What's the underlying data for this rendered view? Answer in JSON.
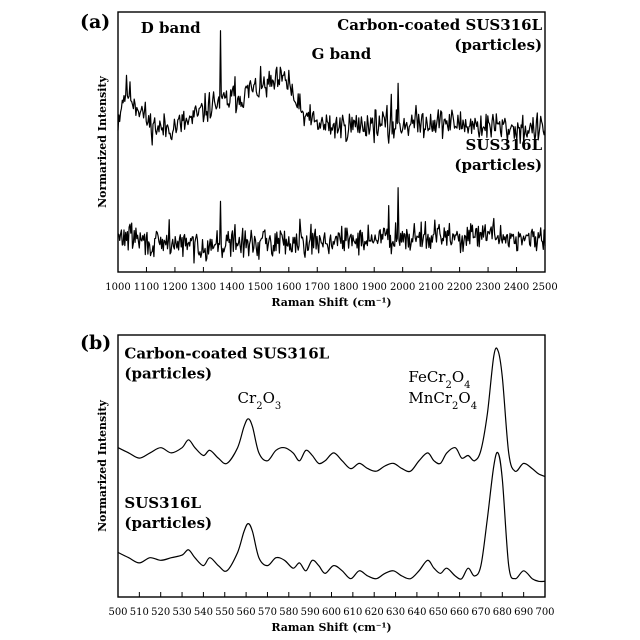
{
  "chart_data": [
    {
      "id": "a",
      "type": "line",
      "panel_label": "(a)",
      "xlabel": "Raman Shift (cm⁻¹)",
      "ylabel": "Normarized Intensity",
      "xlim": [
        1000,
        2500
      ],
      "ylim": [
        0,
        1
      ],
      "xticks": [
        1000,
        1100,
        1200,
        1300,
        1400,
        1500,
        1600,
        1700,
        1800,
        1900,
        2000,
        2100,
        2200,
        2300,
        2400,
        2500
      ],
      "grid": false,
      "annotations": [
        {
          "text": "D band",
          "x": 1080,
          "y": 0.92
        },
        {
          "text": "G band",
          "x": 1680,
          "y": 0.82
        },
        {
          "lines": [
            "Carbon-coated SUS316L",
            "(particles)"
          ],
          "x": 2490,
          "y": 0.93
        },
        {
          "lines": [
            "SUS316L",
            "(particles)"
          ],
          "x": 2490,
          "y": 0.47
        }
      ],
      "series": [
        {
          "seed": 11,
          "noise": 0.028,
          "x": [
            1000,
            1015,
            1030,
            1060,
            1090,
            1110,
            1150,
            1200,
            1250,
            1300,
            1340,
            1380,
            1420,
            1460,
            1500,
            1540,
            1580,
            1600,
            1620,
            1650,
            1700,
            1750,
            1800,
            1900,
            2000,
            2100,
            2200,
            2300,
            2400,
            2500
          ],
          "y": [
            0.58,
            0.66,
            0.7,
            0.65,
            0.61,
            0.57,
            0.55,
            0.56,
            0.58,
            0.62,
            0.65,
            0.66,
            0.67,
            0.69,
            0.71,
            0.72,
            0.74,
            0.72,
            0.66,
            0.6,
            0.57,
            0.56,
            0.56,
            0.57,
            0.57,
            0.58,
            0.57,
            0.56,
            0.55,
            0.55
          ],
          "spikes": [
            [
              1360,
              0.22
            ],
            [
              1410,
              0.1
            ],
            [
              1465,
              0.06
            ],
            [
              1600,
              0.06
            ],
            [
              1665,
              0.07
            ],
            [
              1960,
              0.13
            ],
            [
              1985,
              0.16
            ],
            [
              1950,
              -0.08
            ],
            [
              1970,
              -0.05
            ],
            [
              2330,
              0.04
            ]
          ]
        },
        {
          "seed": 29,
          "noise": 0.026,
          "x": [
            1000,
            1050,
            1100,
            1150,
            1200,
            1300,
            1400,
            1500,
            1600,
            1700,
            1800,
            1900,
            2000,
            2100,
            2200,
            2300,
            2400,
            2500
          ],
          "y": [
            0.13,
            0.14,
            0.11,
            0.1,
            0.11,
            0.1,
            0.11,
            0.11,
            0.12,
            0.12,
            0.12,
            0.13,
            0.14,
            0.14,
            0.13,
            0.14,
            0.13,
            0.12
          ],
          "spikes": [
            [
              1180,
              0.1
            ],
            [
              1360,
              0.15
            ],
            [
              1410,
              0.08
            ],
            [
              1640,
              0.09
            ],
            [
              1950,
              0.1
            ],
            [
              1985,
              0.2
            ],
            [
              1970,
              -0.05
            ],
            [
              2320,
              0.06
            ]
          ]
        }
      ]
    },
    {
      "id": "b",
      "type": "line",
      "panel_label": "(b)",
      "xlabel": "Raman Shift (cm⁻¹)",
      "ylabel": "Normarized Intensity",
      "xlim": [
        500,
        700
      ],
      "ylim": [
        0,
        1
      ],
      "xticks": [
        500,
        510,
        520,
        530,
        540,
        550,
        560,
        570,
        580,
        590,
        600,
        610,
        620,
        630,
        640,
        650,
        660,
        670,
        680,
        690,
        700
      ],
      "grid": false,
      "annotations": [
        {
          "lines": [
            "Carbon-coated SUS316L",
            "(particles)"
          ],
          "x": 503,
          "y": 0.91
        },
        {
          "parts": [
            {
              "t": "Cr"
            },
            {
              "t": "2",
              "sub": true
            },
            {
              "t": "O"
            },
            {
              "t": "3",
              "sub": true
            }
          ],
          "x": 556,
          "y": 0.74
        },
        {
          "parts": [
            {
              "t": "FeCr"
            },
            {
              "t": "2",
              "sub": true
            },
            {
              "t": "O"
            },
            {
              "t": "4",
              "sub": true
            }
          ],
          "x": 636,
          "y": 0.82
        },
        {
          "parts": [
            {
              "t": "MnCr"
            },
            {
              "t": "2",
              "sub": true
            },
            {
              "t": "O"
            },
            {
              "t": "4",
              "sub": true
            }
          ],
          "x": 636,
          "y": 0.74
        },
        {
          "lines": [
            "SUS316L",
            "(particles)"
          ],
          "x": 503,
          "y": 0.34
        }
      ],
      "series": [
        {
          "x": [
            500,
            505,
            510,
            515,
            520,
            525,
            530,
            533,
            536,
            540,
            543,
            547,
            551,
            556,
            559,
            561,
            563,
            566,
            570,
            574,
            578,
            582,
            585,
            588,
            591,
            594,
            597,
            601,
            605,
            609,
            613,
            617,
            621,
            625,
            629,
            633,
            637,
            641,
            645,
            648,
            651,
            654,
            658,
            661,
            664,
            667,
            670,
            673,
            676,
            678,
            680,
            683,
            686,
            690,
            694,
            697,
            700
          ],
          "y": [
            0.57,
            0.55,
            0.53,
            0.55,
            0.57,
            0.55,
            0.57,
            0.6,
            0.57,
            0.54,
            0.56,
            0.53,
            0.51,
            0.57,
            0.65,
            0.68,
            0.65,
            0.55,
            0.52,
            0.56,
            0.57,
            0.55,
            0.52,
            0.56,
            0.54,
            0.51,
            0.52,
            0.55,
            0.52,
            0.49,
            0.51,
            0.49,
            0.48,
            0.5,
            0.51,
            0.49,
            0.48,
            0.52,
            0.55,
            0.52,
            0.51,
            0.55,
            0.57,
            0.53,
            0.54,
            0.52,
            0.56,
            0.7,
            0.92,
            0.94,
            0.84,
            0.55,
            0.48,
            0.51,
            0.49,
            0.47,
            0.46
          ]
        },
        {
          "x": [
            500,
            505,
            510,
            515,
            520,
            525,
            530,
            533,
            536,
            540,
            543,
            547,
            551,
            556,
            559,
            561,
            563,
            566,
            570,
            574,
            578,
            582,
            585,
            588,
            591,
            594,
            597,
            601,
            605,
            609,
            613,
            617,
            621,
            625,
            629,
            633,
            637,
            641,
            645,
            648,
            651,
            654,
            658,
            661,
            664,
            667,
            670,
            673,
            676,
            678,
            680,
            683,
            686,
            690,
            694,
            697,
            700
          ],
          "y": [
            0.17,
            0.15,
            0.13,
            0.15,
            0.14,
            0.15,
            0.16,
            0.18,
            0.15,
            0.12,
            0.15,
            0.12,
            0.1,
            0.17,
            0.25,
            0.28,
            0.25,
            0.15,
            0.12,
            0.15,
            0.14,
            0.11,
            0.13,
            0.1,
            0.14,
            0.12,
            0.09,
            0.12,
            0.1,
            0.07,
            0.1,
            0.08,
            0.07,
            0.09,
            0.1,
            0.08,
            0.07,
            0.1,
            0.14,
            0.11,
            0.09,
            0.11,
            0.08,
            0.07,
            0.11,
            0.08,
            0.12,
            0.3,
            0.5,
            0.55,
            0.45,
            0.12,
            0.07,
            0.1,
            0.07,
            0.06,
            0.06
          ]
        }
      ]
    }
  ]
}
